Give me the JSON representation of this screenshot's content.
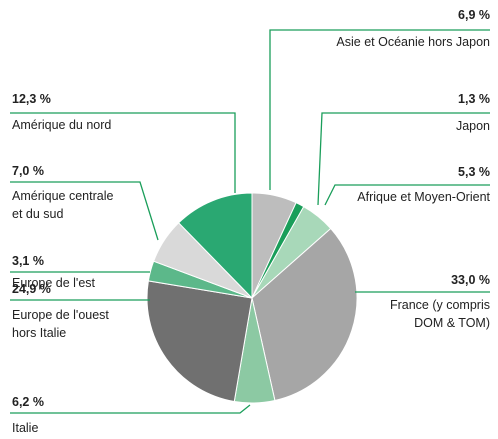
{
  "chart_data": {
    "type": "pie",
    "categories": [
      "Asie et Océanie hors Japon",
      "Japon",
      "Afrique et Moyen-Orient",
      "France (y compris\nDOM & TOM)",
      "Italie",
      "Europe de l'ouest\nhors Italie",
      "Europe de l'est",
      "Amérique centrale\net du sud",
      "Amérique du nord"
    ],
    "values": [
      6.9,
      1.3,
      5.3,
      33.0,
      6.2,
      24.9,
      3.1,
      7.0,
      12.3
    ],
    "value_labels": [
      "6,9 %",
      "1,3 %",
      "5,3 %",
      "33,0 %",
      "6,2 %",
      "24,9 %",
      "3,1 %",
      "7,0 %",
      "12,3 %"
    ],
    "colors": [
      "#bdbdbd",
      "#1a9e5a",
      "#a8d8b9",
      "#a6a6a6",
      "#8cc9a3",
      "#707070",
      "#5cb88a",
      "#d9d9d9",
      "#2aa872"
    ]
  }
}
